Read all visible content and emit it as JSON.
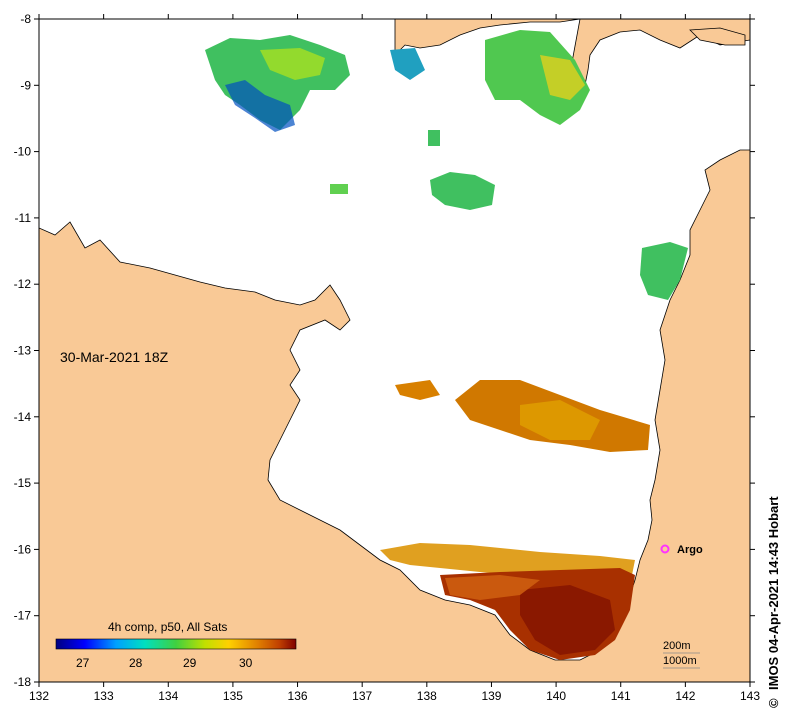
{
  "map": {
    "date_label": "30-Mar-2021 18Z",
    "x_ticks": [
      "132",
      "133",
      "134",
      "135",
      "136",
      "137",
      "138",
      "139",
      "140",
      "141",
      "142",
      "143"
    ],
    "y_ticks": [
      "-8",
      "-9",
      "-10",
      "-11",
      "-12",
      "-13",
      "-14",
      "-15",
      "-16",
      "-17",
      "-18"
    ],
    "argo_label": "Argo",
    "credit": "IMOS 04-Apr-2021 14:43 Hobart",
    "copyright_symbol": "©",
    "scale_200": "200m",
    "scale_1000": "1000m",
    "colorbar": {
      "title": "4h comp, p50, All Sats",
      "ticks": [
        "27",
        "28",
        "29",
        "30"
      ]
    },
    "colors": {
      "land": "#f9c996",
      "ocean": "#ffffff",
      "argo": "#ff33ff"
    }
  }
}
